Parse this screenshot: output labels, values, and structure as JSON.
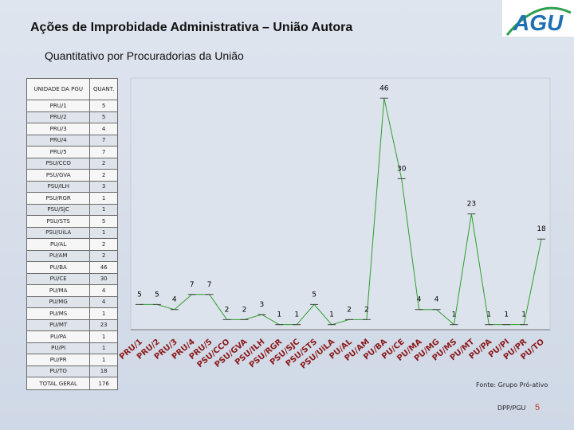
{
  "header": {
    "title": "Ações de Improbidade Administrativa – União Autora",
    "subtitle": "Quantitativo por Procuradorias da União"
  },
  "logo": {
    "text": "AGU",
    "color": "#1f6fb5",
    "accent": "#2e9e4f"
  },
  "table": {
    "col1": "UNIDADE DA PGU",
    "col2": "QUANT.",
    "total_label": "TOTAL GERAL",
    "total_value": "176"
  },
  "chart_data": {
    "type": "line",
    "categories": [
      "PRU/1",
      "PRU/2",
      "PRU/3",
      "PRU/4",
      "PRU/5",
      "PSU/CCO",
      "PSU/GVA",
      "PSU/ILH",
      "PSU/RGR",
      "PSU/SJC",
      "PSU/STS",
      "PSU/UiLA",
      "PU/AL",
      "PU/AM",
      "PU/BA",
      "PU/CE",
      "PU/MA",
      "PU/MG",
      "PU/MS",
      "PU/MT",
      "PU/PA",
      "PU/PI",
      "PU/PR",
      "PU/TO"
    ],
    "values": [
      5,
      5,
      4,
      7,
      7,
      2,
      2,
      3,
      1,
      1,
      5,
      1,
      2,
      2,
      46,
      30,
      4,
      4,
      1,
      23,
      1,
      1,
      1,
      18
    ],
    "ylim": [
      0,
      50
    ],
    "xlabel": "",
    "ylabel": "",
    "marker": "dash",
    "line_color": "#2ca02c",
    "label_color": "#000000"
  },
  "footer": {
    "source": "Fonte: Grupo Pró-ativo",
    "dept": "DPP/PGU",
    "page": "5"
  }
}
